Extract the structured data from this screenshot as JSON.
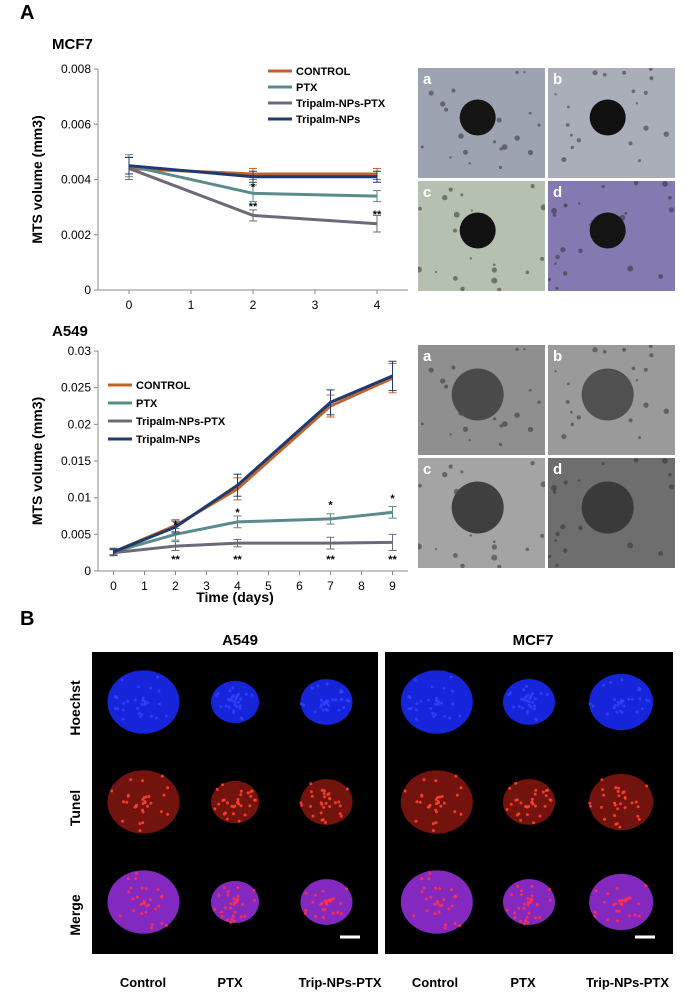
{
  "panel_a_label": "A",
  "panel_b_label": "B",
  "chart_data": [
    {
      "type": "line",
      "title": "MCF7",
      "xlabel": "",
      "ylabel": "MTS volume (mm3)",
      "x": [
        0,
        2,
        4
      ],
      "xticks": [
        "0",
        "1",
        "2",
        "3",
        "4"
      ],
      "xlim": [
        -0.5,
        4.5
      ],
      "ylim": [
        0,
        0.008
      ],
      "yticks": [
        "0",
        "0.002",
        "0.004",
        "0.006",
        "0.008"
      ],
      "legend_position": "top-right",
      "series": [
        {
          "name": "CONTROL",
          "color": "#c0622a",
          "values": [
            0.0044,
            0.0042,
            0.0042
          ],
          "err": [
            0.0004,
            0.0002,
            0.0002
          ]
        },
        {
          "name": "PTX",
          "color": "#5b8a8a",
          "values": [
            0.0045,
            0.0035,
            0.0034
          ],
          "err": [
            0.0004,
            0.0003,
            0.0002
          ]
        },
        {
          "name": "Tripalm-NPs-PTX",
          "color": "#6f6878",
          "values": [
            0.0044,
            0.0027,
            0.0024
          ],
          "err": [
            0.0004,
            0.0002,
            0.0003
          ]
        },
        {
          "name": "Tripalm-NPs",
          "color": "#1f3a6e",
          "values": [
            0.0045,
            0.0041,
            0.0041
          ],
          "err": [
            0.0003,
            0.0002,
            0.0002
          ]
        }
      ],
      "annotations": [
        {
          "x": 2,
          "y": 0.0036,
          "text": "*"
        },
        {
          "x": 2,
          "y": 0.0029,
          "text": "**"
        },
        {
          "x": 4,
          "y": 0.0026,
          "text": "**"
        }
      ]
    },
    {
      "type": "line",
      "title": "A549",
      "xlabel": "Time (days)",
      "ylabel": "MTS volume (mm3)",
      "x": [
        0,
        2,
        4,
        7,
        9
      ],
      "xticks": [
        "0",
        "1",
        "2",
        "3",
        "4",
        "5",
        "6",
        "7",
        "8",
        "9"
      ],
      "xlim": [
        -0.5,
        9.5
      ],
      "ylim": [
        0,
        0.03
      ],
      "yticks": [
        "0",
        "0.005",
        "0.01",
        "0.015",
        "0.02",
        "0.025",
        "0.03"
      ],
      "legend_position": "top-left",
      "series": [
        {
          "name": "CONTROL",
          "color": "#c0622a",
          "values": [
            0.0026,
            0.0062,
            0.0112,
            0.0225,
            0.0263
          ],
          "err": [
            0.0005,
            0.0008,
            0.0015,
            0.0015,
            0.002
          ]
        },
        {
          "name": "PTX",
          "color": "#5b8a8a",
          "values": [
            0.0026,
            0.005,
            0.0067,
            0.0071,
            0.008
          ],
          "err": [
            0.0005,
            0.0008,
            0.0008,
            0.0007,
            0.0008
          ]
        },
        {
          "name": "Tripalm-NPs-PTX",
          "color": "#6f6878",
          "values": [
            0.0025,
            0.0034,
            0.0038,
            0.0038,
            0.0039
          ],
          "err": [
            0.0004,
            0.0006,
            0.0005,
            0.0008,
            0.0011
          ]
        },
        {
          "name": "Tripalm-NPs",
          "color": "#1f3a6e",
          "values": [
            0.0026,
            0.006,
            0.0117,
            0.023,
            0.0266
          ],
          "err": [
            0.0004,
            0.0008,
            0.0015,
            0.0017,
            0.002
          ]
        }
      ],
      "annotations": [
        {
          "x": 2,
          "y": 0.0058,
          "text": "*"
        },
        {
          "x": 4,
          "y": 0.0075,
          "text": "*"
        },
        {
          "x": 7,
          "y": 0.0085,
          "text": "*"
        },
        {
          "x": 9,
          "y": 0.0094,
          "text": "*"
        },
        {
          "x": 2,
          "y": 0.0011,
          "text": "**"
        },
        {
          "x": 4,
          "y": 0.0011,
          "text": "**"
        },
        {
          "x": 7,
          "y": 0.0011,
          "text": "**"
        },
        {
          "x": 9,
          "y": 0.0011,
          "text": "**"
        }
      ]
    }
  ],
  "micrographs": {
    "mcf7": [
      {
        "label": "a",
        "bg": "#9da3b0",
        "core": "#151515"
      },
      {
        "label": "b",
        "bg": "#a9aeb8",
        "core": "#101010"
      },
      {
        "label": "c",
        "bg": "#b6c0b0",
        "core": "#121212"
      },
      {
        "label": "d",
        "bg": "#8479b0",
        "core": "#141414"
      }
    ],
    "a549": [
      {
        "label": "a",
        "bg": "#8f8f8f",
        "core": "#4a4a4a"
      },
      {
        "label": "b",
        "bg": "#9a9a9a",
        "core": "#505050"
      },
      {
        "label": "c",
        "bg": "#a4a4a4",
        "core": "#3f3f3f"
      },
      {
        "label": "d",
        "bg": "#6e6e6e",
        "core": "#3a3a3a"
      }
    ]
  },
  "panel_b": {
    "groups": [
      "A549",
      "MCF7"
    ],
    "rows": [
      "Hoechst",
      "Tunel",
      "Merge"
    ],
    "columns": [
      "Control",
      "PTX",
      "Trip-NPs-PTX",
      "Control",
      "PTX",
      "Trip-NPs-PTX"
    ],
    "colors": {
      "hoechst": "#1a2cff",
      "tunel": "#ff2a20",
      "merge": "#9a30e0"
    }
  }
}
